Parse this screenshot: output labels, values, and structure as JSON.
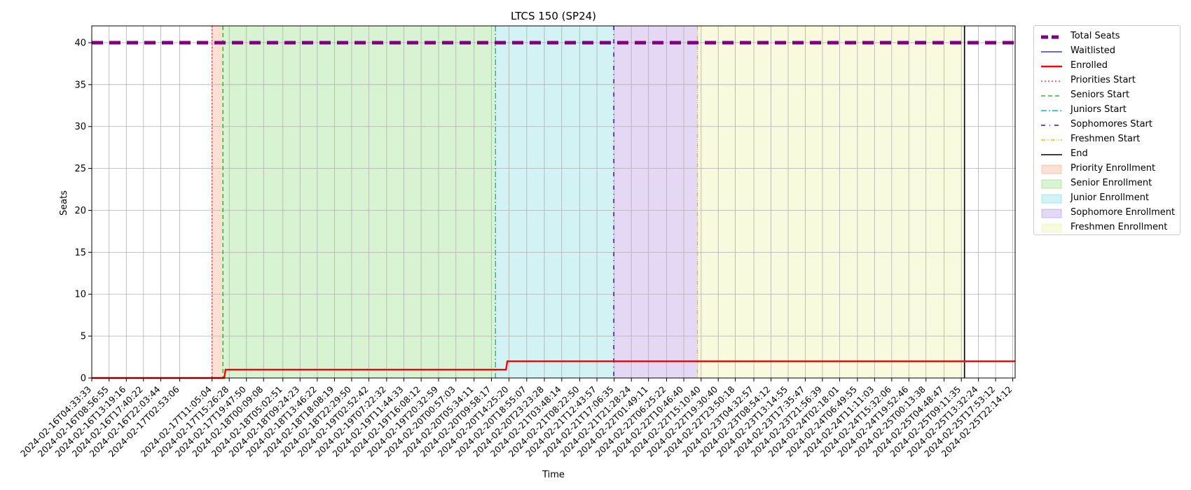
{
  "chart_data": {
    "type": "line",
    "title": "LTCS 150 (SP24)",
    "xlabel": "Time",
    "ylabel": "Seats",
    "ylim": [
      0,
      42
    ],
    "xlim": [
      "2024-02-16T04:33:33",
      "2024-02-25T22:51:00"
    ],
    "grid": true,
    "legend_position": "outside-right",
    "y_ticks": [
      "0",
      "5",
      "10",
      "15",
      "20",
      "25",
      "30",
      "35",
      "40"
    ],
    "x_ticks": [
      "2024-02-16T04:33:33",
      "2024-02-16T08:56:55",
      "2024-02-16T13:19:16",
      "2024-02-16T17:40:22",
      "2024-02-16T22:03:44",
      "2024-02-17T02:53:06",
      "2024-02-17T11:05:04",
      "2024-02-17T15:26:28",
      "2024-02-17T19:47:50",
      "2024-02-18T00:09:08",
      "2024-02-18T05:02:51",
      "2024-02-18T09:24:23",
      "2024-02-18T13:46:22",
      "2024-02-18T18:08:19",
      "2024-02-18T22:29:50",
      "2024-02-19T02:52:42",
      "2024-02-19T07:22:32",
      "2024-02-19T11:44:33",
      "2024-02-19T16:08:12",
      "2024-02-19T20:32:59",
      "2024-02-20T00:57:03",
      "2024-02-20T05:34:11",
      "2024-02-20T09:58:17",
      "2024-02-20T14:25:20",
      "2024-02-20T18:55:07",
      "2024-02-20T23:23:28",
      "2024-02-21T03:48:14",
      "2024-02-21T08:22:50",
      "2024-02-21T12:43:57",
      "2024-02-21T17:06:35",
      "2024-02-21T21:28:24",
      "2024-02-22T01:49:11",
      "2024-02-22T06:25:22",
      "2024-02-22T10:46:40",
      "2024-02-22T15:10:40",
      "2024-02-22T19:30:40",
      "2024-02-22T23:50:18",
      "2024-02-23T04:32:57",
      "2024-02-23T08:54:12",
      "2024-02-23T13:14:55",
      "2024-02-23T17:35:47",
      "2024-02-23T21:56:39",
      "2024-02-24T02:18:01",
      "2024-02-24T06:49:55",
      "2024-02-24T11:11:03",
      "2024-02-24T15:32:06",
      "2024-02-24T19:52:46",
      "2024-02-25T00:13:38",
      "2024-02-25T04:48:47",
      "2024-02-25T09:11:35",
      "2024-02-25T13:32:24",
      "2024-02-25T17:53:12",
      "2024-02-25T22:14:12"
    ],
    "spans": [
      {
        "name": "Priority Enrollment",
        "start": "2024-02-17T11:05:04",
        "end": "2024-02-17T13:50:00",
        "color": "#f4a582"
      },
      {
        "name": "Senior Enrollment",
        "start": "2024-02-17T13:50:00",
        "end": "2024-02-20T11:00:00",
        "color": "#90dc7a"
      },
      {
        "name": "Junior Enrollment",
        "start": "2024-02-20T11:00:00",
        "end": "2024-02-21T17:00:00",
        "color": "#7fd9e0"
      },
      {
        "name": "Sophomore Enrollment",
        "start": "2024-02-21T17:00:00",
        "end": "2024-02-22T14:15:00",
        "color": "#b190e3"
      },
      {
        "name": "Freshmen Enrollment",
        "start": "2024-02-22T14:15:00",
        "end": "2024-02-25T10:00:00",
        "color": "#eeeeA0"
      }
    ],
    "vlines": [
      {
        "name": "Priorities Start",
        "x": "2024-02-17T11:05:04",
        "color": "#ff3333",
        "dash": "2,3"
      },
      {
        "name": "Seniors Start",
        "x": "2024-02-17T13:50:00",
        "color": "#22bb22",
        "dash": "6,4"
      },
      {
        "name": "Juniors Start",
        "x": "2024-02-20T11:00:00",
        "color": "#00bfbf",
        "dash": "8,3,2,3"
      },
      {
        "name": "Sophomores Start",
        "x": "2024-02-21T17:00:00",
        "color": "#4400cc",
        "dash": "6,6,1,6"
      },
      {
        "name": "Freshmen Start",
        "x": "2024-02-22T14:15:00",
        "color": "#e6c200",
        "dash": "6,2,1,2,1,2"
      },
      {
        "name": "End",
        "x": "2024-02-25T10:00:00",
        "color": "#000000",
        "dash": ""
      }
    ],
    "series": [
      {
        "name": "Total Seats",
        "color": "#800080",
        "x": [
          "2024-02-16T04:33:33",
          "2024-02-25T22:51:00"
        ],
        "y": [
          40,
          40
        ]
      },
      {
        "name": "Enrolled",
        "color": "#ff0000",
        "x": [
          "2024-02-16T04:33:33",
          "2024-02-17T14:10:00",
          "2024-02-17T14:30:00",
          "2024-02-20T13:40:00",
          "2024-02-20T14:00:00",
          "2024-02-25T22:51:00"
        ],
        "y": [
          0,
          0,
          1,
          1,
          2,
          2
        ]
      },
      {
        "name": "Waitlisted",
        "color": "#3333ff",
        "x": [],
        "y": []
      }
    ]
  },
  "legend": {
    "items": [
      {
        "label": "Total Seats",
        "kind": "thick-dash",
        "color": "#800080"
      },
      {
        "label": "Waitlisted",
        "kind": "line",
        "color": "#3333ff"
      },
      {
        "label": "Enrolled",
        "kind": "thick-line",
        "color": "#ff0000"
      },
      {
        "label": "Priorities Start",
        "kind": "dotted",
        "color": "#ff3333"
      },
      {
        "label": "Seniors Start",
        "kind": "dashed",
        "color": "#22bb22"
      },
      {
        "label": "Juniors Start",
        "kind": "dashdot",
        "color": "#00bfbf"
      },
      {
        "label": "Sophomores Start",
        "kind": "loosedash",
        "color": "#4400cc"
      },
      {
        "label": "Freshmen Start",
        "kind": "dashdotdot",
        "color": "#e6c200"
      },
      {
        "label": "End",
        "kind": "line",
        "color": "#000000"
      },
      {
        "label": "Priority Enrollment",
        "kind": "patch",
        "color": "#f4a582"
      },
      {
        "label": "Senior Enrollment",
        "kind": "patch",
        "color": "#90dc7a"
      },
      {
        "label": "Junior Enrollment",
        "kind": "patch",
        "color": "#7fd9e0"
      },
      {
        "label": "Sophomore Enrollment",
        "kind": "patch",
        "color": "#b190e3"
      },
      {
        "label": "Freshmen Enrollment",
        "kind": "patch",
        "color": "#eeeeA0"
      }
    ]
  }
}
